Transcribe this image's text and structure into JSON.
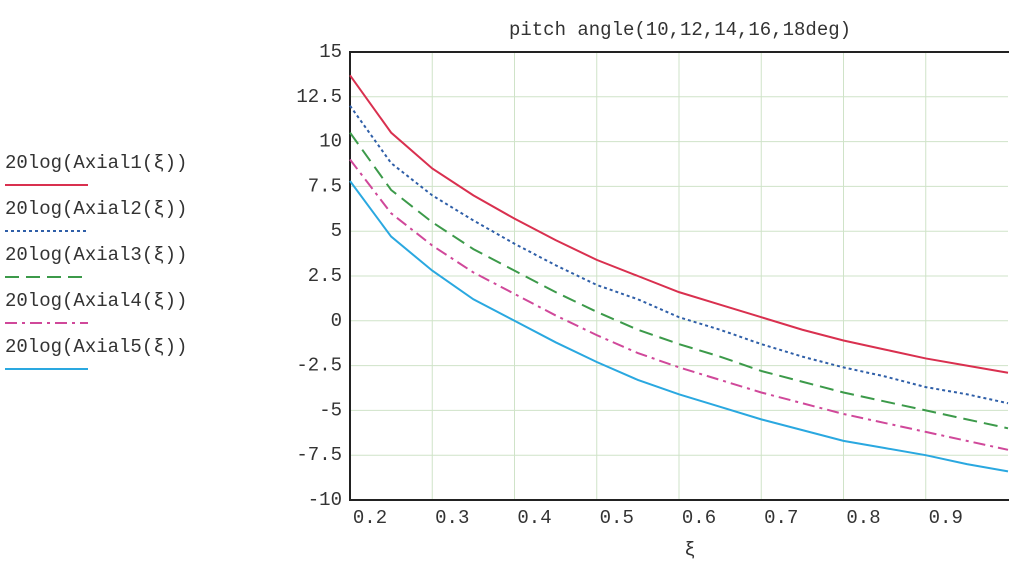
{
  "chart_data": {
    "type": "line",
    "title": "pitch angle(10,12,14,16,18deg)",
    "x_label": "ξ",
    "x": [
      0.2,
      0.25,
      0.3,
      0.35,
      0.4,
      0.45,
      0.5,
      0.55,
      0.6,
      0.65,
      0.7,
      0.75,
      0.8,
      0.85,
      0.9,
      0.95,
      1.0
    ],
    "series": [
      {
        "name": "20log(Axial1(ξ))",
        "color": "#d9304f",
        "dash": "solid",
        "values": [
          13.7,
          10.5,
          8.5,
          7,
          5.7,
          4.5,
          3.4,
          2.5,
          1.6,
          0.9,
          0.2,
          -0.5,
          -1.1,
          -1.6,
          -2.1,
          -2.5,
          -2.9
        ]
      },
      {
        "name": "20log(Axial2(ξ))",
        "color": "#2f5fa8",
        "dash": "dotted",
        "values": [
          12,
          8.8,
          7,
          5.6,
          4.3,
          3.1,
          2,
          1.2,
          0.2,
          -0.5,
          -1.3,
          -2,
          -2.6,
          -3.1,
          -3.7,
          -4.1,
          -4.6
        ]
      },
      {
        "name": "20log(Axial3(ξ))",
        "color": "#3c9a4a",
        "dash": "dashed",
        "values": [
          10.5,
          7.3,
          5.5,
          4,
          2.8,
          1.6,
          0.5,
          -0.5,
          -1.3,
          -2,
          -2.8,
          -3.4,
          -4,
          -4.5,
          -5,
          -5.5,
          -6
        ]
      },
      {
        "name": "20log(Axial4(ξ))",
        "color": "#d0489a",
        "dash": "dashdot",
        "values": [
          9,
          6,
          4.2,
          2.7,
          1.5,
          0.3,
          -0.8,
          -1.8,
          -2.6,
          -3.3,
          -4,
          -4.6,
          -5.2,
          -5.7,
          -6.2,
          -6.7,
          -7.2
        ]
      },
      {
        "name": "20log(Axial5(ξ))",
        "color": "#2aa8e0",
        "dash": "solid",
        "values": [
          7.8,
          4.7,
          2.8,
          1.2,
          0,
          -1.2,
          -2.3,
          -3.3,
          -4.1,
          -4.8,
          -5.5,
          -6.1,
          -6.7,
          -7.1,
          -7.5,
          -8,
          -8.4
        ]
      }
    ],
    "xlim": [
      0.2,
      1.0
    ],
    "xticks": [
      0.2,
      0.3,
      0.4,
      0.5,
      0.6,
      0.7,
      0.8,
      0.9
    ],
    "ylim": [
      -10,
      15
    ],
    "yticks": [
      15,
      12.5,
      10,
      7.5,
      5,
      2.5,
      0,
      -2.5,
      -5,
      -7.5,
      -10
    ],
    "grid": true,
    "legend": "left"
  }
}
